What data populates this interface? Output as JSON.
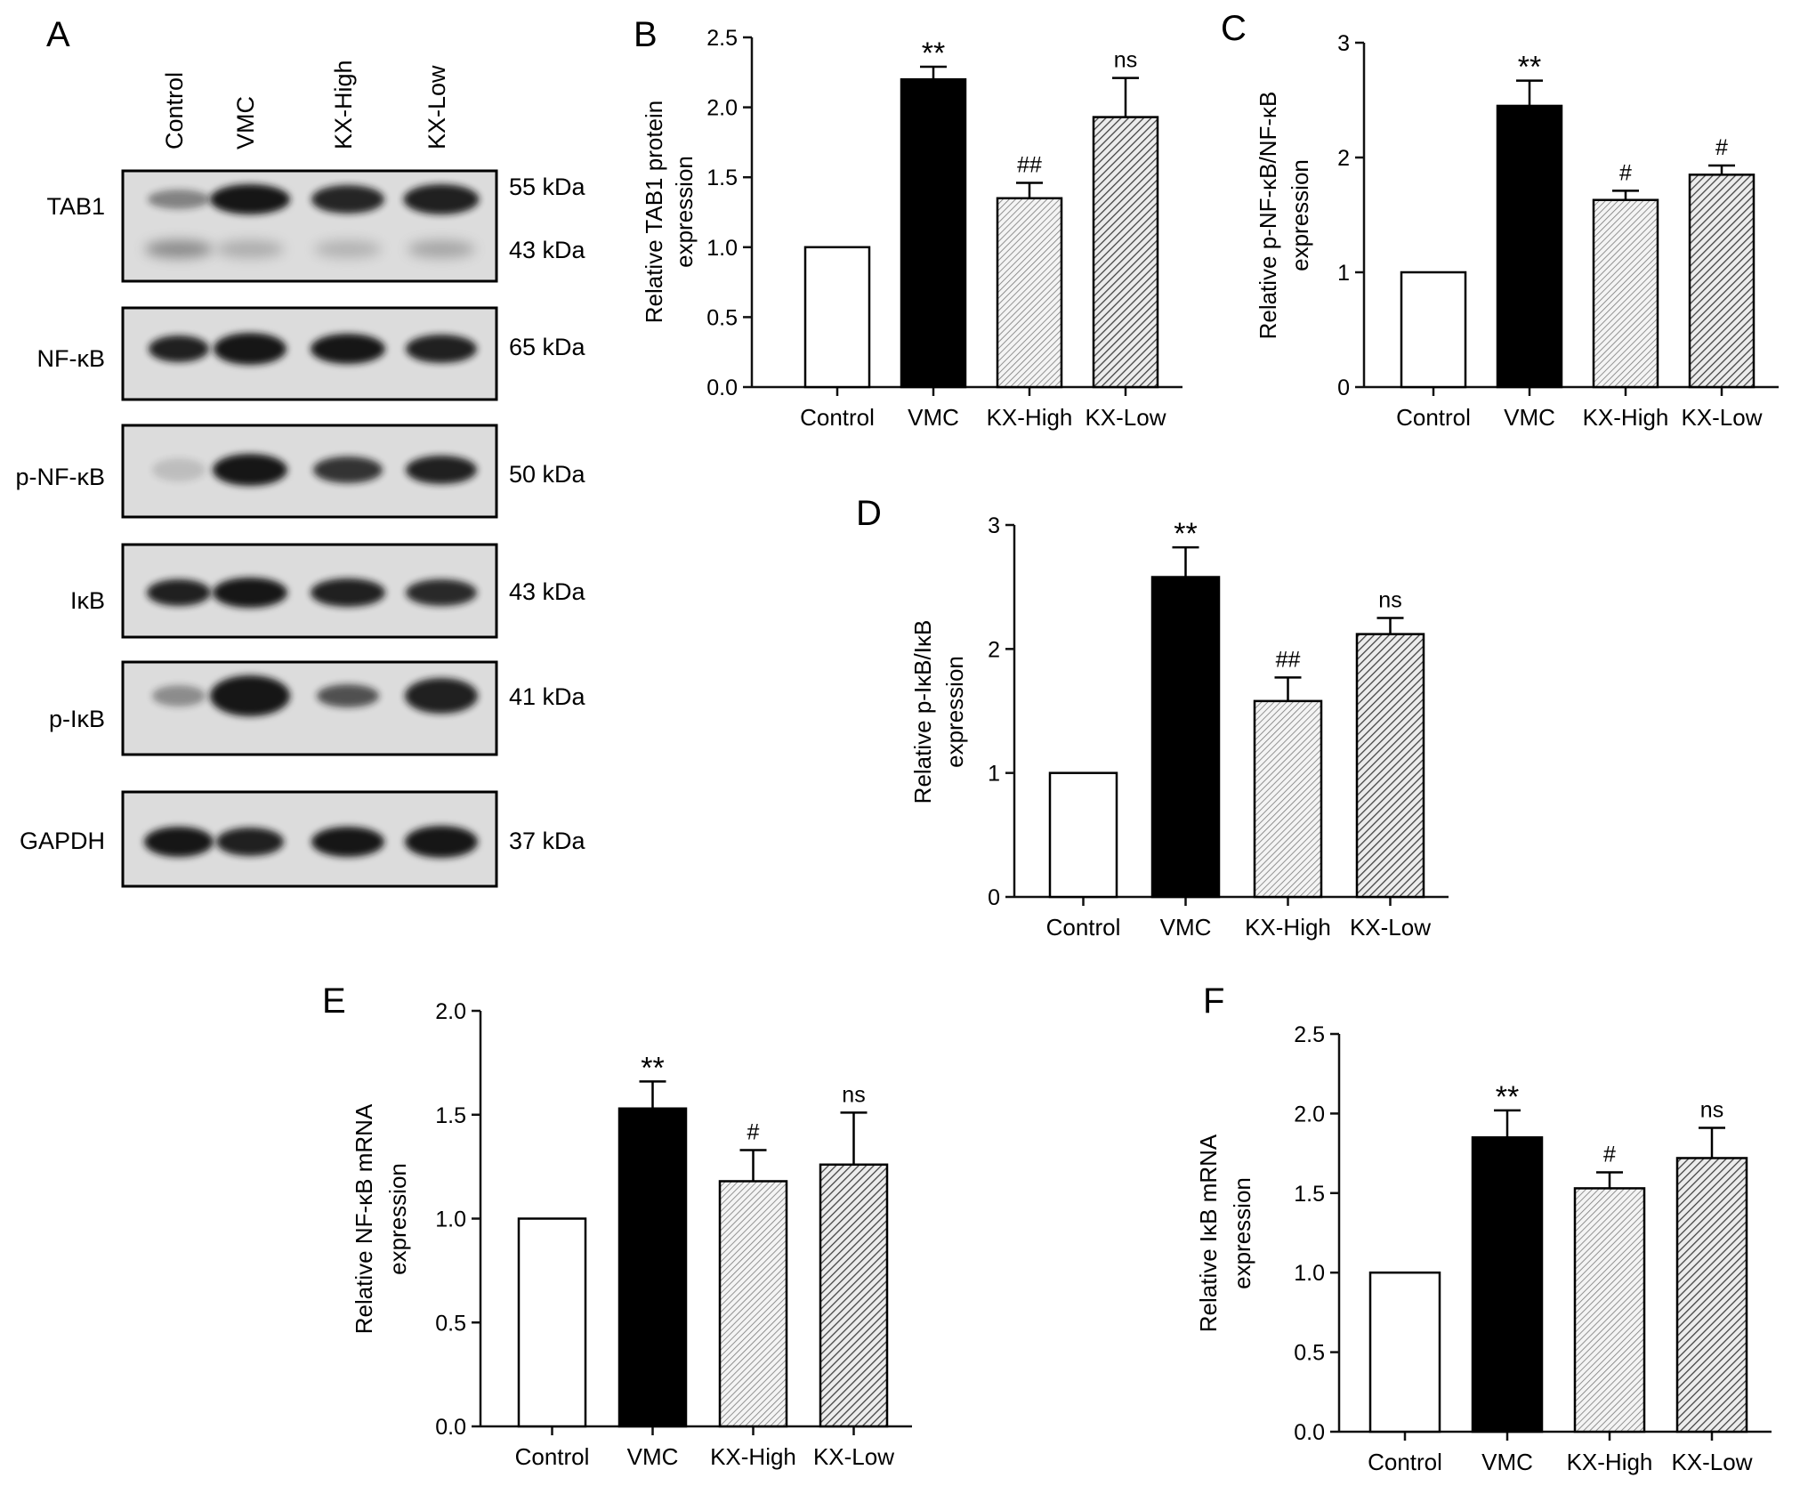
{
  "panels": {
    "A": "A",
    "B": "B",
    "C": "C",
    "D": "D",
    "E": "E",
    "F": "F"
  },
  "blot": {
    "lanes": [
      "Control",
      "VMC",
      "KX-High",
      "KX-Low"
    ],
    "rows": [
      {
        "protein": "TAB1",
        "sizes": [
          "55 kDa",
          "43 kDa"
        ]
      },
      {
        "protein": "NF-κB",
        "sizes": [
          "65 kDa"
        ]
      },
      {
        "protein": "p-NF-κB",
        "sizes": [
          "50 kDa"
        ]
      },
      {
        "protein": "IκB",
        "sizes": [
          "43 kDa"
        ]
      },
      {
        "protein": "p-IκB",
        "sizes": [
          "41 kDa"
        ]
      },
      {
        "protein": "GAPDH",
        "sizes": [
          "37 kDa"
        ]
      }
    ]
  },
  "colors": {
    "control": "#ffffff",
    "vmc": "#000000",
    "kx_high": "#bdbdbd",
    "kx_low": "#8a8a8a",
    "axis": "#111111",
    "membrane": "#dcdcdc",
    "band": "#161616"
  },
  "chart_data": [
    {
      "panel": "B",
      "type": "bar",
      "categories": [
        "Control",
        "VMC",
        "KX-High",
        "KX-Low"
      ],
      "values": [
        1.0,
        2.2,
        1.35,
        1.93
      ],
      "errors": [
        0,
        0.09,
        0.11,
        0.28
      ],
      "annotations": [
        "",
        "**",
        "##",
        "ns"
      ],
      "ylabel": [
        "Relative TAB1 protein",
        "expression"
      ],
      "ylim": [
        0,
        2.5
      ],
      "yticks": [
        "0.0",
        "0.5",
        "1.0",
        "1.5",
        "2.0",
        "2.5"
      ]
    },
    {
      "panel": "C",
      "type": "bar",
      "categories": [
        "Control",
        "VMC",
        "KX-High",
        "KX-Low"
      ],
      "values": [
        1.0,
        2.45,
        1.63,
        1.85
      ],
      "errors": [
        0,
        0.22,
        0.08,
        0.08
      ],
      "annotations": [
        "",
        "**",
        "#",
        "#"
      ],
      "ylabel": [
        "Relative p-NF-κB/NF-κB",
        "expression"
      ],
      "ylim": [
        0,
        3
      ],
      "yticks": [
        "0",
        "1",
        "2",
        "3"
      ]
    },
    {
      "panel": "D",
      "type": "bar",
      "categories": [
        "Control",
        "VMC",
        "KX-High",
        "KX-Low"
      ],
      "values": [
        1.0,
        2.58,
        1.58,
        2.12
      ],
      "errors": [
        0,
        0.24,
        0.19,
        0.13
      ],
      "annotations": [
        "",
        "**",
        "##",
        "ns"
      ],
      "ylabel": [
        "Relative p-IκB/IκB",
        "expression"
      ],
      "ylim": [
        0,
        3
      ],
      "yticks": [
        "0",
        "1",
        "2",
        "3"
      ]
    },
    {
      "panel": "E",
      "type": "bar",
      "categories": [
        "Control",
        "VMC",
        "KX-High",
        "KX-Low"
      ],
      "values": [
        1.0,
        1.53,
        1.18,
        1.26
      ],
      "errors": [
        0,
        0.13,
        0.15,
        0.25
      ],
      "annotations": [
        "",
        "**",
        "#",
        "ns"
      ],
      "ylabel": [
        "Relative NF-κB mRNA",
        "expression"
      ],
      "ylim": [
        0,
        2.0
      ],
      "yticks": [
        "0.0",
        "0.5",
        "1.0",
        "1.5",
        "2.0"
      ]
    },
    {
      "panel": "F",
      "type": "bar",
      "categories": [
        "Control",
        "VMC",
        "KX-High",
        "KX-Low"
      ],
      "values": [
        1.0,
        1.85,
        1.53,
        1.72
      ],
      "errors": [
        0,
        0.17,
        0.1,
        0.19
      ],
      "annotations": [
        "",
        "**",
        "#",
        "ns"
      ],
      "ylabel": [
        "Relative IκB mRNA",
        "expression"
      ],
      "ylim": [
        0,
        2.5
      ],
      "yticks": [
        "0.0",
        "0.5",
        "1.0",
        "1.5",
        "2.0",
        "2.5"
      ]
    }
  ]
}
